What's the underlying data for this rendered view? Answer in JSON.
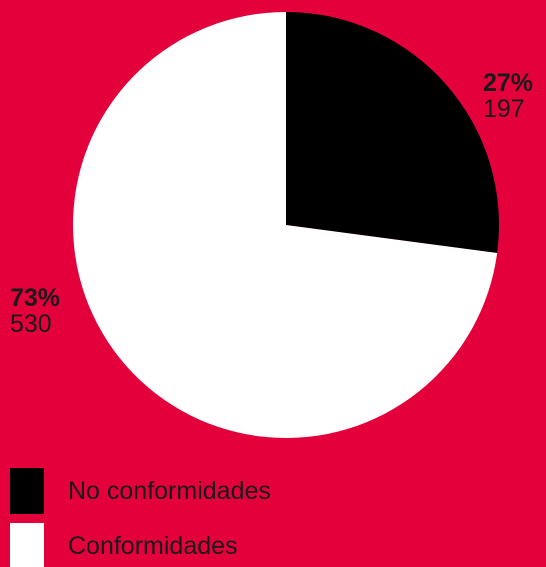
{
  "colors": {
    "background": "#E4003A",
    "text": "#1A1A1A"
  },
  "chart_data": {
    "type": "pie",
    "title": "",
    "start_angle_deg": 0,
    "direction": "clockwise",
    "slices": [
      {
        "name": "No conformidades",
        "value": 197,
        "percent_label": "27%",
        "value_label": "197",
        "color": "#000000"
      },
      {
        "name": "Conformidades",
        "value": 530,
        "percent_label": "73%",
        "value_label": "530",
        "color": "#FFFFFF"
      }
    ],
    "legend": {
      "placement": "bottom-left",
      "entries": [
        "No conformidades",
        "Conformidades"
      ]
    }
  }
}
